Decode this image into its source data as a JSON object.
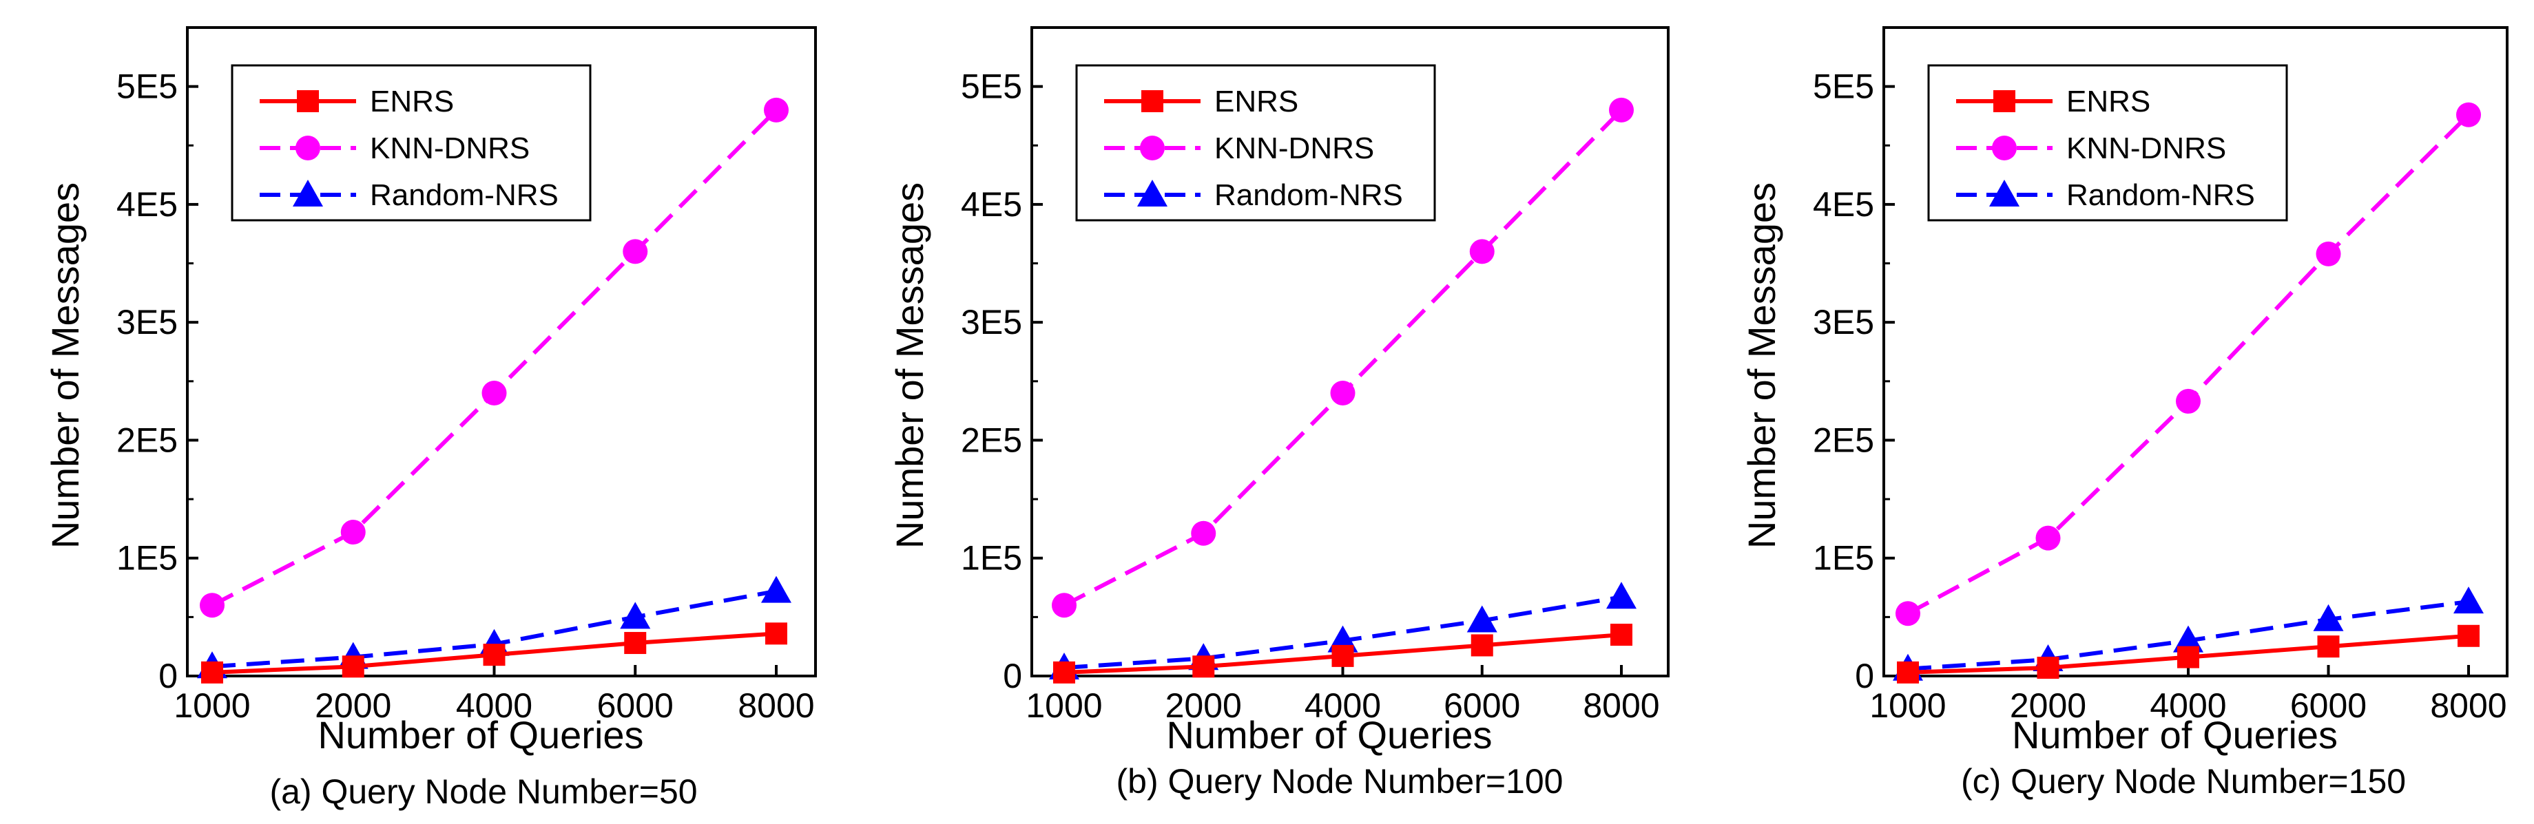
{
  "chart_data": [
    {
      "type": "line",
      "caption": "(a) Query Node Number=50",
      "xlabel": "Number of Queries",
      "ylabel": "Number of Messages",
      "categories": [
        "1000",
        "2000",
        "4000",
        "6000",
        "8000"
      ],
      "ylim": [
        0,
        550000
      ],
      "yticks": [
        {
          "value": 0,
          "label": "0"
        },
        {
          "value": 100000,
          "label": "1E5"
        },
        {
          "value": 200000,
          "label": "2E5"
        },
        {
          "value": 300000,
          "label": "3E5"
        },
        {
          "value": 400000,
          "label": "4E5"
        },
        {
          "value": 500000,
          "label": "5E5"
        }
      ],
      "legend_position": "top-left",
      "series": [
        {
          "name": "ENRS",
          "values": [
            3000,
            8000,
            18000,
            28000,
            36000
          ],
          "color": "#ff0000",
          "marker": "square",
          "dash": "solid"
        },
        {
          "name": "KNN-DNRS",
          "values": [
            60000,
            122000,
            240000,
            360000,
            480000
          ],
          "color": "#ff00ff",
          "marker": "circle",
          "dash": "dashed"
        },
        {
          "name": "Random-NRS",
          "values": [
            8000,
            16000,
            27000,
            50000,
            72000
          ],
          "color": "#0000ff",
          "marker": "triangle",
          "dash": "dashed"
        }
      ]
    },
    {
      "type": "line",
      "caption": "(b) Query Node Number=100",
      "xlabel": "Number of Queries",
      "ylabel": "Number of Messages",
      "categories": [
        "1000",
        "2000",
        "4000",
        "6000",
        "8000"
      ],
      "ylim": [
        0,
        550000
      ],
      "yticks": [
        {
          "value": 0,
          "label": "0"
        },
        {
          "value": 100000,
          "label": "1E5"
        },
        {
          "value": 200000,
          "label": "2E5"
        },
        {
          "value": 300000,
          "label": "3E5"
        },
        {
          "value": 400000,
          "label": "4E5"
        },
        {
          "value": 500000,
          "label": "5E5"
        }
      ],
      "legend_position": "top-left",
      "series": [
        {
          "name": "ENRS",
          "values": [
            3000,
            8000,
            17000,
            26000,
            35000
          ],
          "color": "#ff0000",
          "marker": "square",
          "dash": "solid"
        },
        {
          "name": "KNN-DNRS",
          "values": [
            60000,
            121000,
            240000,
            360000,
            480000
          ],
          "color": "#ff00ff",
          "marker": "circle",
          "dash": "dashed"
        },
        {
          "name": "Random-NRS",
          "values": [
            7000,
            15000,
            30000,
            47000,
            67000
          ],
          "color": "#0000ff",
          "marker": "triangle",
          "dash": "dashed"
        }
      ]
    },
    {
      "type": "line",
      "caption": "(c) Query Node Number=150",
      "xlabel": "Number of Queries",
      "ylabel": "Number of Messages",
      "categories": [
        "1000",
        "2000",
        "4000",
        "6000",
        "8000"
      ],
      "ylim": [
        0,
        550000
      ],
      "yticks": [
        {
          "value": 0,
          "label": "0"
        },
        {
          "value": 100000,
          "label": "1E5"
        },
        {
          "value": 200000,
          "label": "2E5"
        },
        {
          "value": 300000,
          "label": "3E5"
        },
        {
          "value": 400000,
          "label": "4E5"
        },
        {
          "value": 500000,
          "label": "5E5"
        }
      ],
      "legend_position": "top-left",
      "series": [
        {
          "name": "ENRS",
          "values": [
            3000,
            7000,
            16000,
            25000,
            34000
          ],
          "color": "#ff0000",
          "marker": "square",
          "dash": "solid"
        },
        {
          "name": "KNN-DNRS",
          "values": [
            53000,
            117000,
            233000,
            358000,
            476000
          ],
          "color": "#ff00ff",
          "marker": "circle",
          "dash": "dashed"
        },
        {
          "name": "Random-NRS",
          "values": [
            6000,
            14000,
            30000,
            48000,
            63000
          ],
          "color": "#0000ff",
          "marker": "triangle",
          "dash": "dashed"
        }
      ]
    }
  ]
}
